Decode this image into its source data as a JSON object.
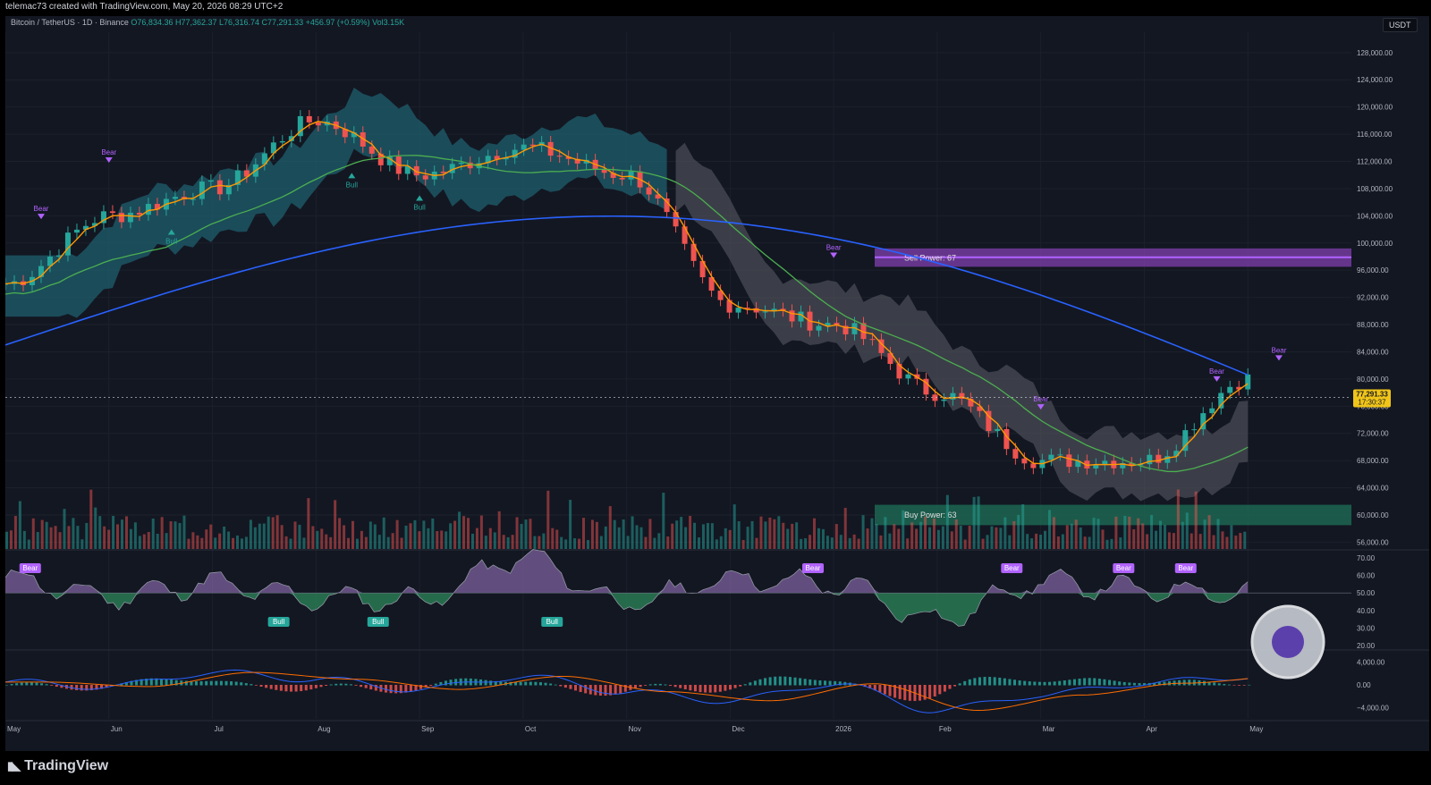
{
  "header": {
    "credit": "telemac73 created with TradingView.com, May 20, 2026 08:29 UTC+2",
    "symbol": "Bitcoin / TetherUS · 1D · Binance",
    "ohlc": "O76,834.36 H77,362.37 L76,316.74 C77,291.33 +456.97 (+0.59%) Vol3.15K",
    "currency_badge": "USDT"
  },
  "brand": {
    "name": "TradingView",
    "icon": "tradingview-logo-icon"
  },
  "colors": {
    "up": "#26a69a",
    "down": "#ef5350",
    "sma200": "#2962ff",
    "ema": "#4caf50",
    "purple": "#b163ff",
    "cloud_up": "#1f5f6e",
    "cloud_down": "#4a4c55"
  },
  "chart_data": [
    {
      "type": "line",
      "title": "Bitcoin / TetherUS · 1D · Binance",
      "xlabel": "",
      "ylabel": "",
      "x_ticks": [
        "May",
        "Jun",
        "Jul",
        "Aug",
        "Sep",
        "Oct",
        "Nov",
        "Dec",
        "2026",
        "Feb",
        "Mar",
        "Apr",
        "May"
      ],
      "y_ticks": [
        "128,000.00",
        "124,000.00",
        "120,000.00",
        "116,000.00",
        "112,000.00",
        "108,000.00",
        "104,000.00",
        "100,000.00",
        "96,000.00",
        "92,000.00",
        "88,000.00",
        "84,000.00",
        "80,000.00",
        "76,000.00",
        "72,000.00",
        "68,000.00",
        "64,000.00",
        "60,000.00",
        "56,000.00"
      ],
      "ylim": [
        55000,
        131000
      ],
      "x": [
        "May",
        "Jun",
        "Jul",
        "Aug",
        "Sep",
        "Oct",
        "Nov",
        "Dec",
        "2026",
        "Feb",
        "Mar",
        "Apr",
        "May"
      ],
      "series": [
        {
          "name": "",
          "values": [
            94000,
            104000,
            108000,
            118000,
            110000,
            114000,
            110000,
            91000,
            88000,
            78000,
            68000,
            68000,
            80000
          ]
        }
      ],
      "last_price": "77,291.33",
      "countdown": "17:30:37",
      "annotations": {
        "sell_power": "Sell Power: 67",
        "buy_power": "Buy Power: 63",
        "bear": "Bear",
        "bull": "Bull"
      },
      "bear_markers": [
        {
          "date": "May",
          "price": 103500
        },
        {
          "date": "Jun",
          "price": 111800
        },
        {
          "date": "2026",
          "price": 97800
        },
        {
          "date": "Mar",
          "price": 75500
        },
        {
          "date": "May",
          "price": 79600
        },
        {
          "date": "May",
          "price": 82700
        }
      ],
      "bull_markers": [
        {
          "date": "Jun",
          "price": 102000
        },
        {
          "date": "Aug",
          "price": 110300
        },
        {
          "date": "Sep",
          "price": 107000
        }
      ]
    },
    {
      "type": "area",
      "title": "",
      "y_ticks": [
        "70.00",
        "60.00",
        "50.00",
        "40.00",
        "30.00",
        "20.00"
      ],
      "ylim": [
        18,
        74
      ],
      "baseline": 50,
      "x": [
        "May",
        "Jun",
        "Jul",
        "Aug",
        "Sep",
        "Oct",
        "Nov",
        "Dec",
        "2026",
        "Feb",
        "Mar",
        "Apr",
        "May"
      ],
      "series": [
        {
          "name": "",
          "values": [
            58,
            48,
            55,
            47,
            46,
            70,
            44,
            58,
            55,
            35,
            56,
            52,
            50
          ]
        }
      ],
      "annotations": {
        "bear": "Bear",
        "bull": "Bull"
      }
    },
    {
      "type": "bar",
      "title": "",
      "y_ticks": [
        "4,000.00",
        "0.00",
        "−4,000.00"
      ],
      "ylim": [
        -6000,
        6000
      ],
      "x": [
        "May",
        "Jun",
        "Jul",
        "Aug",
        "Sep",
        "Oct",
        "Nov",
        "Dec",
        "2026",
        "Feb",
        "Mar",
        "Apr",
        "May"
      ],
      "series": [
        {
          "name": "",
          "values": [
            500,
            -300,
            2200,
            1000,
            -800,
            1500,
            -1200,
            -2800,
            200,
            -4500,
            -1800,
            300,
            1500
          ]
        }
      ]
    }
  ]
}
